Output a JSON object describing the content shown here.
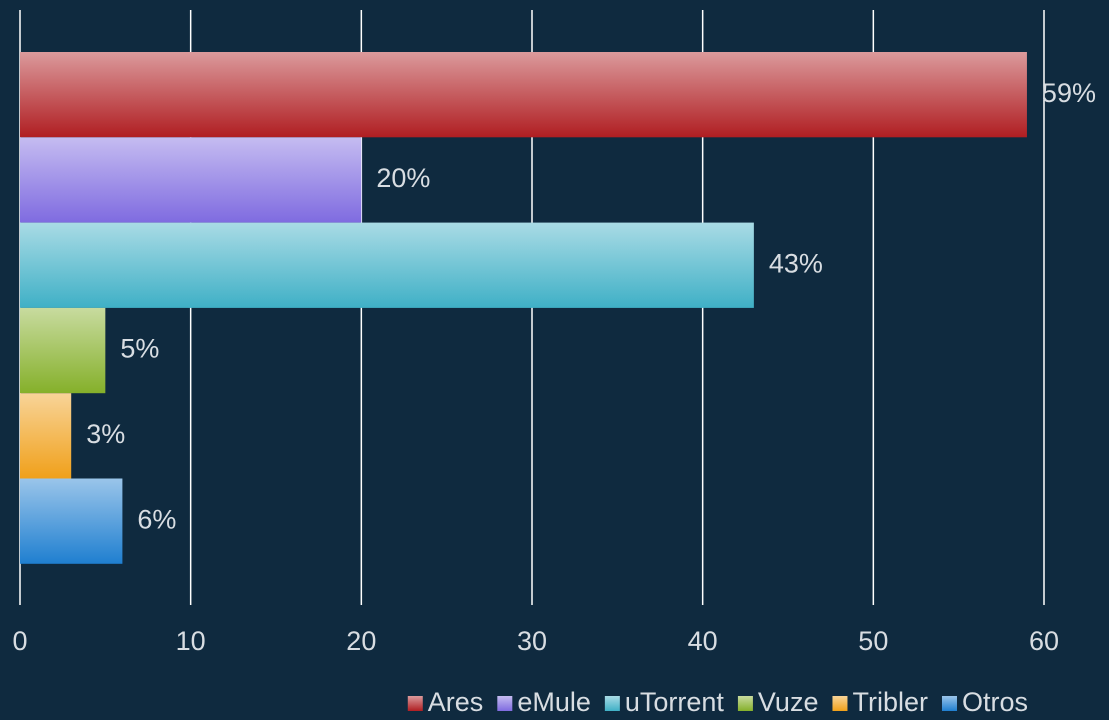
{
  "chart_data": {
    "type": "bar",
    "orientation": "horizontal",
    "series": [
      {
        "name": "Ares",
        "color": "#b01e22",
        "values": [
          59
        ],
        "value_labels": [
          "59%"
        ]
      },
      {
        "name": "eMule",
        "color": "#7f6be0",
        "values": [
          20
        ],
        "value_labels": [
          "20%"
        ]
      },
      {
        "name": "uTorrent",
        "color": "#3fb0c6",
        "values": [
          43
        ],
        "value_labels": [
          "43%"
        ]
      },
      {
        "name": "Vuze",
        "color": "#85b02a",
        "values": [
          5
        ],
        "value_labels": [
          "5%"
        ]
      },
      {
        "name": "Tribler",
        "color": "#f0a01a",
        "values": [
          3
        ],
        "value_labels": [
          "3%"
        ]
      },
      {
        "name": "Otros",
        "color": "#1f7fd0",
        "values": [
          6
        ],
        "value_labels": [
          "6%"
        ]
      }
    ],
    "xlim": [
      0,
      60
    ],
    "xticks": [
      0,
      10,
      20,
      30,
      40,
      50,
      60
    ],
    "grid": true,
    "legend": "bottom"
  }
}
